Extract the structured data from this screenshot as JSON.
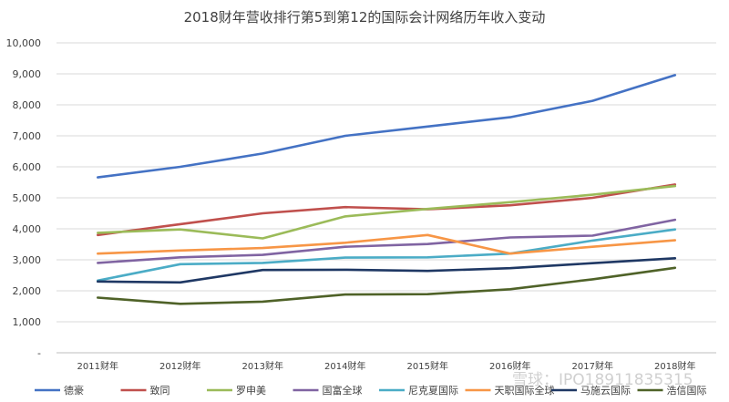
{
  "chart_data": {
    "type": "line",
    "title": "2018财年营收排行第5到第12的国际会计网络历年收入变动",
    "xlabel": "",
    "ylabel": "",
    "categories": [
      "2011财年",
      "2012财年",
      "2013财年",
      "2014财年",
      "2015财年",
      "2016财年",
      "2017财年",
      "2018财年"
    ],
    "ylim": [
      0,
      10000
    ],
    "yticks": [
      {
        "value": 0,
        "label": "-"
      },
      {
        "value": 1000,
        "label": "1,000"
      },
      {
        "value": 2000,
        "label": "2,000"
      },
      {
        "value": 3000,
        "label": "3,000"
      },
      {
        "value": 4000,
        "label": "4,000"
      },
      {
        "value": 5000,
        "label": "5,000"
      },
      {
        "value": 6000,
        "label": "6,000"
      },
      {
        "value": 7000,
        "label": "7,000"
      },
      {
        "value": 8000,
        "label": "8,000"
      },
      {
        "value": 9000,
        "label": "9,000"
      },
      {
        "value": 10000,
        "label": "10,000"
      }
    ],
    "grid": true,
    "legend": "bottom",
    "series": [
      {
        "name": "德豪",
        "color": "#4472c4",
        "values": [
          5660,
          6000,
          6430,
          7000,
          7300,
          7600,
          8130,
          8960
        ]
      },
      {
        "name": "致同",
        "color": "#c0504d",
        "values": [
          3800,
          4150,
          4500,
          4700,
          4630,
          4760,
          5000,
          5430
        ]
      },
      {
        "name": "罗申美",
        "color": "#9bbb59",
        "values": [
          3870,
          3980,
          3690,
          4400,
          4640,
          4860,
          5100,
          5380
        ]
      },
      {
        "name": "国富全球",
        "color": "#8064a2",
        "values": [
          2900,
          3080,
          3160,
          3420,
          3510,
          3720,
          3780,
          4290
        ]
      },
      {
        "name": "尼克夏国际",
        "color": "#4bacc6",
        "values": [
          2330,
          2860,
          2900,
          3070,
          3080,
          3200,
          3620,
          3980
        ]
      },
      {
        "name": "天职国际全球",
        "color": "#f79646",
        "values": [
          3200,
          3300,
          3380,
          3550,
          3800,
          3200,
          3420,
          3630
        ]
      },
      {
        "name": "马施云国际",
        "color": "#1f3864",
        "values": [
          2300,
          2270,
          2670,
          2680,
          2640,
          2730,
          2890,
          3050
        ]
      },
      {
        "name": "浩信国际",
        "color": "#4f6228",
        "values": [
          1780,
          1580,
          1650,
          1880,
          1890,
          2050,
          2370,
          2740
        ]
      }
    ]
  },
  "watermark": "雪球：IPO18911835315"
}
